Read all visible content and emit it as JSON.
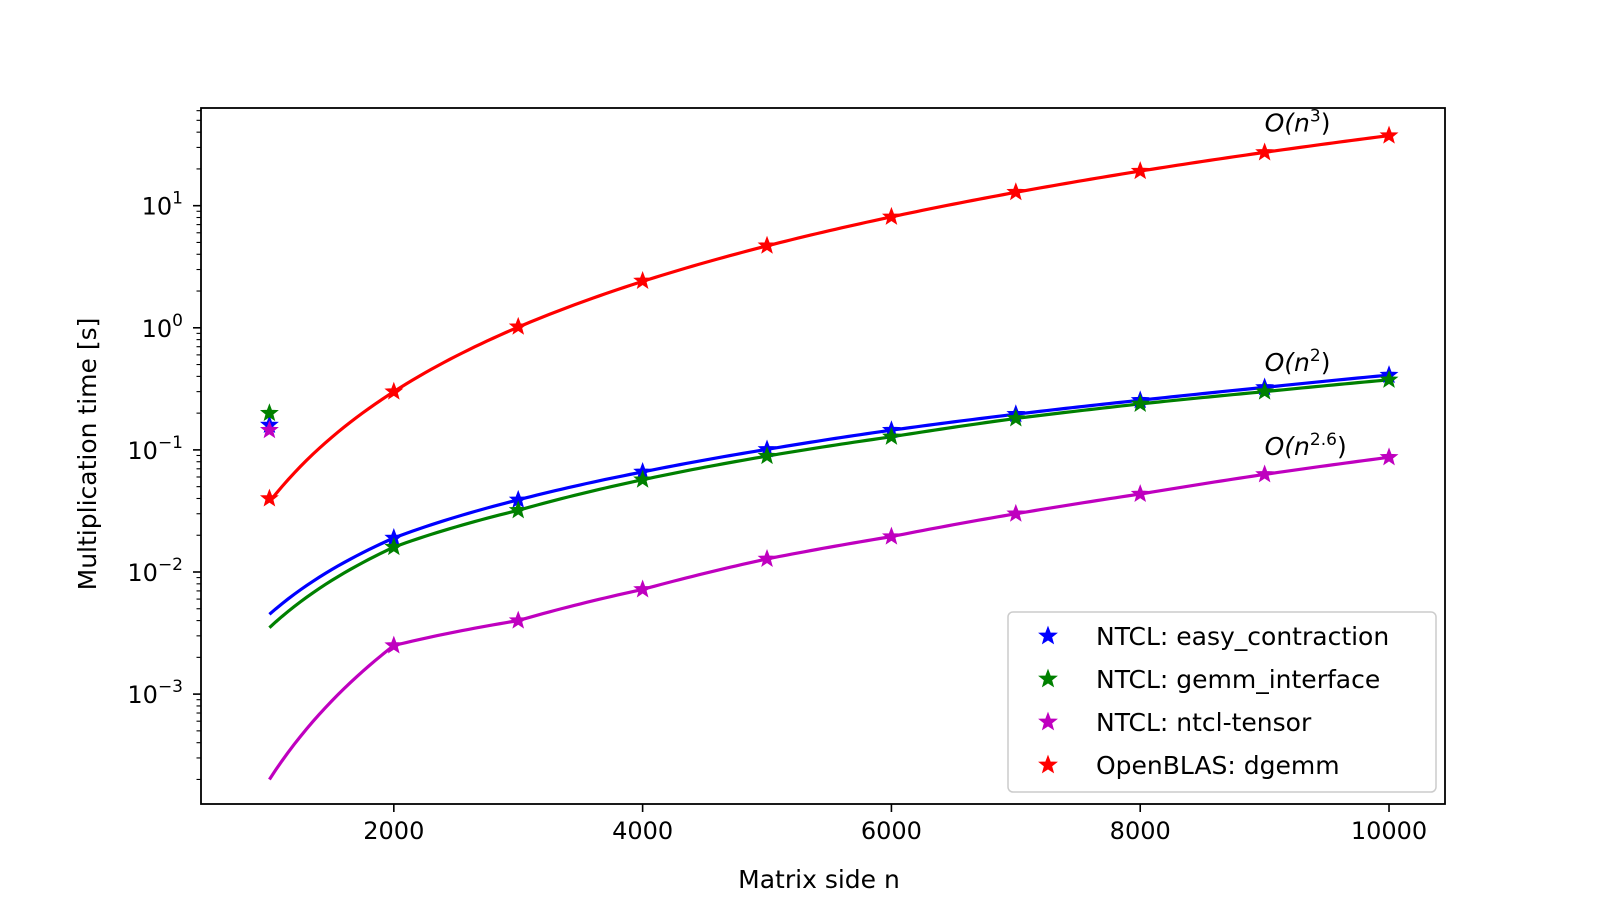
{
  "chart_data": {
    "type": "line",
    "title": "",
    "xlabel": "Matrix side n",
    "ylabel": "Multiplication time [s]",
    "xlim": [
      450,
      10450
    ],
    "ylim_log10": [
      -3.9,
      1.8
    ],
    "yscale": "log",
    "grid": false,
    "legend_position": "lower-right",
    "x_ticks": [
      2000,
      4000,
      6000,
      8000,
      10000
    ],
    "x_tick_labels": [
      "2000",
      "4000",
      "6000",
      "8000",
      "10000"
    ],
    "y_ticks": [
      {
        "exp": 1,
        "base": "10",
        "sup": "1"
      },
      {
        "exp": 0,
        "base": "10",
        "sup": "0"
      },
      {
        "exp": -1,
        "base": "10",
        "sup": "−1"
      },
      {
        "exp": -2,
        "base": "10",
        "sup": "−2"
      },
      {
        "exp": -3,
        "base": "10",
        "sup": "−3"
      }
    ],
    "series": [
      {
        "name": "NTCL: easy_contraction",
        "color": "#0000ff",
        "marker": "star",
        "x": [
          1000,
          2000,
          3000,
          4000,
          5000,
          6000,
          7000,
          8000,
          9000,
          10000
        ],
        "y": [
          0.16,
          0.019,
          0.039,
          0.066,
          0.101,
          0.145,
          0.196,
          0.255,
          0.325,
          0.41
        ]
      },
      {
        "name": "NTCL: gemm_interface",
        "color": "#008000",
        "marker": "star",
        "x": [
          1000,
          2000,
          3000,
          4000,
          5000,
          6000,
          7000,
          8000,
          9000,
          10000
        ],
        "y": [
          0.2,
          0.016,
          0.032,
          0.057,
          0.089,
          0.128,
          0.181,
          0.238,
          0.3,
          0.375
        ]
      },
      {
        "name": "NTCL: ntcl-tensor",
        "color": "#bf00bf",
        "marker": "star",
        "x": [
          1000,
          2000,
          3000,
          4000,
          5000,
          6000,
          7000,
          8000,
          9000,
          10000
        ],
        "y": [
          0.145,
          0.0025,
          0.004,
          0.0072,
          0.0128,
          0.0195,
          0.03,
          0.0435,
          0.063,
          0.087
        ]
      },
      {
        "name": "OpenBLAS: dgemm",
        "color": "#ff0000",
        "marker": "star",
        "x": [
          1000,
          2000,
          3000,
          4000,
          5000,
          6000,
          7000,
          8000,
          9000,
          10000
        ],
        "y": [
          0.04,
          0.3,
          1.02,
          2.42,
          4.7,
          8.1,
          12.9,
          19.2,
          27.3,
          37.5
        ]
      }
    ],
    "fits": [
      {
        "series": "NTCL: easy_contraction",
        "color": "#0000ff",
        "coef": 0.0045,
        "a": 0.55,
        "note": ""
      },
      {
        "series": "NTCL: gemm_interface",
        "color": "#008000",
        "coef": 0.0035,
        "a": 0.57,
        "note": ""
      },
      {
        "series": "NTCL: ntcl-tensor",
        "color": "#bf00bf",
        "coef": 0.0002,
        "a": 0.84,
        "note": ""
      },
      {
        "series": "OpenBLAS: dgemm",
        "color": "#ff0000",
        "coef": 0.0375,
        "a": 1,
        "note": ""
      }
    ],
    "annotations": [
      {
        "text": "O(n",
        "sup": "3",
        "close": ")",
        "x": 9000,
        "log10y": 1.68
      },
      {
        "text": "O(n",
        "sup": "2",
        "close": ")",
        "x": 9000,
        "log10y": -0.28
      },
      {
        "text": "O(n",
        "sup": "2.6",
        "close": ")",
        "x": 9000,
        "log10y": -0.97
      }
    ]
  }
}
